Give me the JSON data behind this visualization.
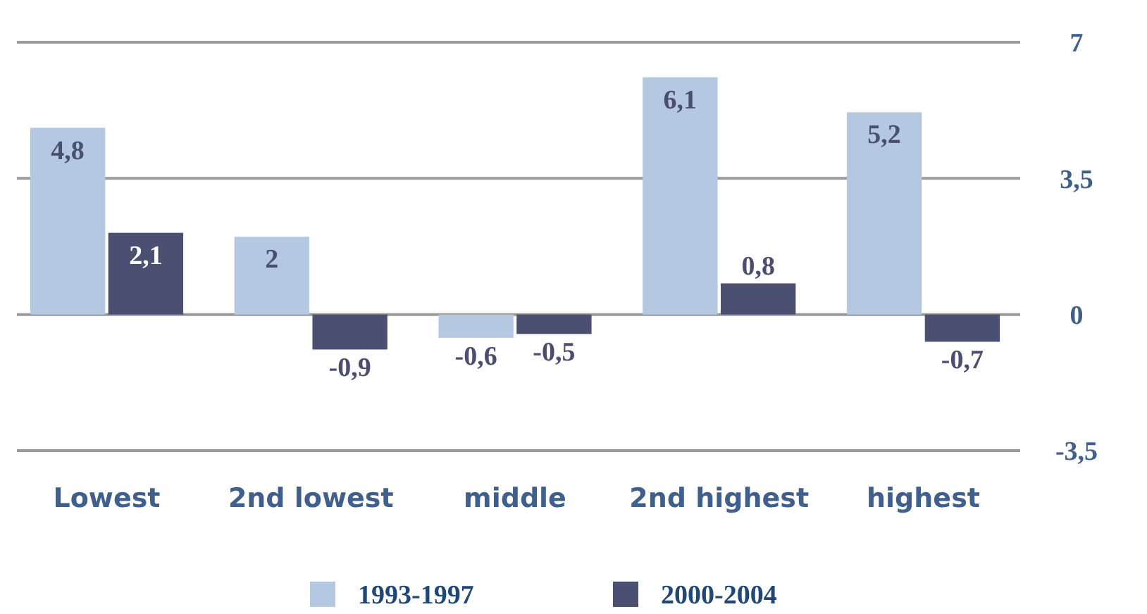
{
  "chart_data": {
    "type": "bar",
    "categories": [
      "Lowest",
      "2nd lowest",
      "middle",
      "2nd highest",
      "highest"
    ],
    "series": [
      {
        "name": "1993-1997",
        "color": "#b4c8e2",
        "values": [
          4.8,
          2,
          -0.6,
          6.1,
          5.2
        ],
        "value_labels": [
          "4,8",
          "2",
          "-0,6",
          "6,1",
          "5,2"
        ]
      },
      {
        "name": "2000-2004",
        "color": "#4b4f72",
        "values": [
          2.1,
          -0.9,
          -0.5,
          0.8,
          -0.7
        ],
        "value_labels": [
          "2,1",
          "-0,9",
          "-0,5",
          "0,8",
          "-0,7"
        ]
      }
    ],
    "ylim": [
      -3.5,
      7
    ],
    "yticks": [
      7,
      {
        "value": 3.5,
        "label": "3,5"
      },
      0,
      {
        "value": -3.5,
        "label": "-3,5"
      }
    ],
    "grid": "y",
    "legend": "bottom"
  }
}
